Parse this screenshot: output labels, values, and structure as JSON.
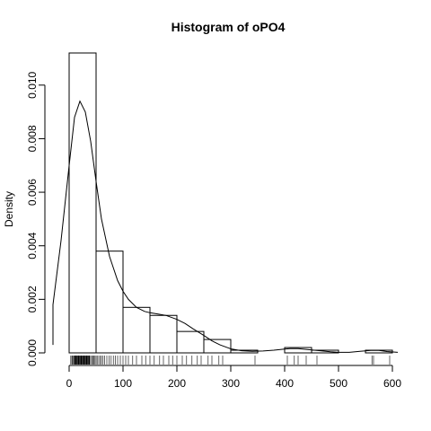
{
  "chart_data": {
    "type": "histogram",
    "title": "Histogram of  oPO4",
    "xlabel": "",
    "ylabel": "Density",
    "xlim": [
      -30,
      620
    ],
    "ylim": [
      0,
      0.0112
    ],
    "x_ticks": [
      0,
      100,
      200,
      300,
      400,
      500,
      600
    ],
    "y_ticks": [
      0.0,
      0.002,
      0.004,
      0.006,
      0.008,
      0.01
    ],
    "y_tick_labels": [
      "0.000",
      "0.002",
      "0.004",
      "0.006",
      "0.008",
      "0.010"
    ],
    "bins": [
      {
        "from": 0,
        "to": 50,
        "density": 0.0112
      },
      {
        "from": 50,
        "to": 100,
        "density": 0.0038
      },
      {
        "from": 100,
        "to": 150,
        "density": 0.0017
      },
      {
        "from": 150,
        "to": 200,
        "density": 0.0014
      },
      {
        "from": 200,
        "to": 250,
        "density": 0.0008
      },
      {
        "from": 250,
        "to": 300,
        "density": 0.0005
      },
      {
        "from": 300,
        "to": 350,
        "density": 0.0001
      },
      {
        "from": 350,
        "to": 400,
        "density": 0.0
      },
      {
        "from": 400,
        "to": 450,
        "density": 0.0002
      },
      {
        "from": 450,
        "to": 500,
        "density": 0.0001
      },
      {
        "from": 500,
        "to": 550,
        "density": 0.0
      },
      {
        "from": 550,
        "to": 600,
        "density": 0.0001
      }
    ],
    "density_curve": {
      "x": [
        -50,
        -30,
        -15,
        0,
        10,
        20,
        30,
        40,
        50,
        60,
        75,
        90,
        100,
        110,
        125,
        140,
        150,
        165,
        180,
        200,
        215,
        230,
        250,
        265,
        280,
        300,
        320,
        340,
        360,
        380,
        400,
        410,
        425,
        440,
        455,
        470,
        485,
        500,
        520,
        540,
        560,
        575,
        590,
        610
      ],
      "y": [
        0.0003,
        0.0018,
        0.0042,
        0.007,
        0.0088,
        0.0094,
        0.009,
        0.0079,
        0.0064,
        0.005,
        0.0036,
        0.0027,
        0.0023,
        0.002,
        0.0017,
        0.00155,
        0.0015,
        0.00145,
        0.0014,
        0.00125,
        0.0011,
        0.0009,
        0.00065,
        0.00045,
        0.0003,
        0.00015,
        8e-05,
        6e-05,
        7e-05,
        0.0001,
        0.00014,
        0.00016,
        0.00016,
        0.00013,
        0.0001,
        7e-05,
        4e-05,
        2e-05,
        2e-05,
        6e-05,
        9e-05,
        9e-05,
        5e-05,
        2e-05
      ]
    },
    "rug": [
      3,
      5,
      6,
      8,
      9,
      10,
      11,
      12,
      13,
      14,
      15,
      16,
      17,
      18,
      19,
      20,
      21,
      22,
      23,
      24,
      25,
      26,
      27,
      28,
      29,
      30,
      31,
      32,
      33,
      34,
      35,
      36,
      37,
      38,
      40,
      42,
      44,
      46,
      48,
      50,
      52,
      55,
      58,
      60,
      63,
      66,
      70,
      74,
      78,
      82,
      86,
      90,
      95,
      100,
      105,
      110,
      118,
      125,
      135,
      142,
      150,
      158,
      168,
      175,
      185,
      192,
      200,
      210,
      218,
      228,
      238,
      245,
      258,
      265,
      278,
      285,
      345,
      405,
      418,
      425,
      440,
      460,
      562,
      565,
      595
    ],
    "grid": false,
    "legend": "none"
  }
}
